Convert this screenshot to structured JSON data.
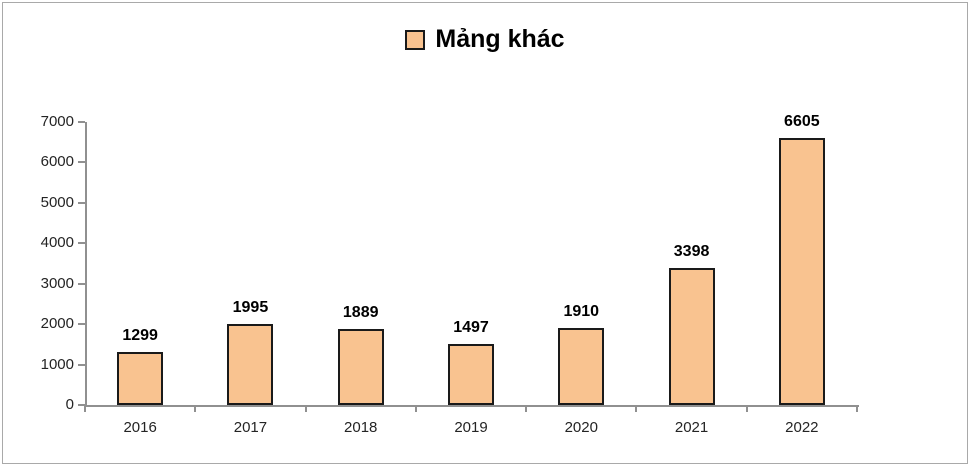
{
  "legend": {
    "label": "Mảng khác"
  },
  "chart_data": {
    "type": "bar",
    "title": "",
    "categories": [
      "2016",
      "2017",
      "2018",
      "2019",
      "2020",
      "2021",
      "2022"
    ],
    "series": [
      {
        "name": "Mảng khác",
        "values": [
          1299,
          1995,
          1889,
          1497,
          1910,
          3398,
          6605
        ]
      }
    ],
    "xlabel": "",
    "ylabel": "",
    "ylim": [
      0,
      7000
    ],
    "yticks": [
      0,
      1000,
      2000,
      3000,
      4000,
      5000,
      6000,
      7000
    ],
    "grid": false,
    "legend_position": "top-center",
    "data_labels_visible": true,
    "colors": {
      "bar_fill": "#F9C390",
      "bar_border": "#1A1A1A",
      "axis": "#909090",
      "tick_label": "#242424",
      "data_label": "#000000",
      "frame_border": "#A9A9A9"
    }
  }
}
